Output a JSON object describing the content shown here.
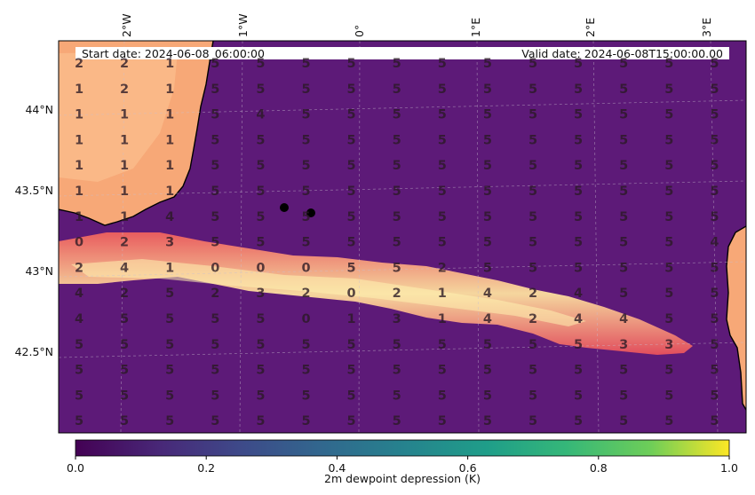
{
  "header": {
    "start_date": "Start date: 2024-06-08_06:00:00",
    "valid_date": "Valid  date: 2024-06-08T15:00:00.00"
  },
  "axes": {
    "lon_labels": [
      "2°W",
      "1°W",
      "0°",
      "1°E",
      "2°E",
      "3°E"
    ],
    "lat_labels": [
      "44°N",
      "43.5°N",
      "43°N",
      "42.5°N"
    ]
  },
  "colorbar": {
    "label": "2m dewpoint depression (K)",
    "ticks": [
      "0.0",
      "0.2",
      "0.4",
      "0.6",
      "0.8",
      "1.0"
    ],
    "colormap": "viridis"
  },
  "map": {
    "field_colormap": "magma",
    "background_color": "#5d1a78",
    "land_color": "#f7a877",
    "band_color": "#f25f5c"
  },
  "grid_values": [
    [
      2,
      2,
      1,
      5,
      5,
      5,
      5,
      5,
      5,
      5,
      5,
      5,
      5,
      5,
      5
    ],
    [
      1,
      2,
      1,
      5,
      5,
      5,
      5,
      5,
      5,
      5,
      5,
      5,
      5,
      5,
      5
    ],
    [
      1,
      1,
      1,
      5,
      4,
      5,
      5,
      5,
      5,
      5,
      5,
      5,
      5,
      5,
      5
    ],
    [
      1,
      1,
      1,
      5,
      5,
      5,
      5,
      5,
      5,
      5,
      5,
      5,
      5,
      5,
      5
    ],
    [
      1,
      1,
      1,
      5,
      5,
      5,
      5,
      5,
      5,
      5,
      5,
      5,
      5,
      5,
      5
    ],
    [
      1,
      1,
      1,
      5,
      5,
      5,
      5,
      5,
      5,
      5,
      5,
      5,
      5,
      5,
      5
    ],
    [
      1,
      1,
      4,
      5,
      5,
      5,
      5,
      5,
      5,
      5,
      5,
      5,
      5,
      5,
      5
    ],
    [
      0,
      2,
      3,
      5,
      5,
      5,
      5,
      5,
      5,
      5,
      5,
      5,
      5,
      5,
      4
    ],
    [
      2,
      4,
      1,
      0,
      0,
      0,
      5,
      5,
      2,
      5,
      5,
      5,
      5,
      5,
      5
    ],
    [
      4,
      2,
      5,
      2,
      3,
      2,
      0,
      2,
      1,
      4,
      2,
      4,
      5,
      5,
      5
    ],
    [
      4,
      5,
      5,
      5,
      5,
      0,
      1,
      3,
      1,
      4,
      2,
      4,
      4,
      5,
      5
    ],
    [
      5,
      5,
      5,
      5,
      5,
      5,
      5,
      5,
      5,
      5,
      5,
      5,
      3,
      3,
      5
    ],
    [
      5,
      5,
      5,
      5,
      5,
      5,
      5,
      5,
      5,
      5,
      5,
      5,
      5,
      5,
      5
    ],
    [
      5,
      5,
      5,
      5,
      5,
      5,
      5,
      5,
      5,
      5,
      5,
      5,
      5,
      5,
      5
    ],
    [
      5,
      5,
      5,
      5,
      5,
      5,
      5,
      5,
      5,
      5,
      5,
      5,
      5,
      5,
      5
    ]
  ]
}
